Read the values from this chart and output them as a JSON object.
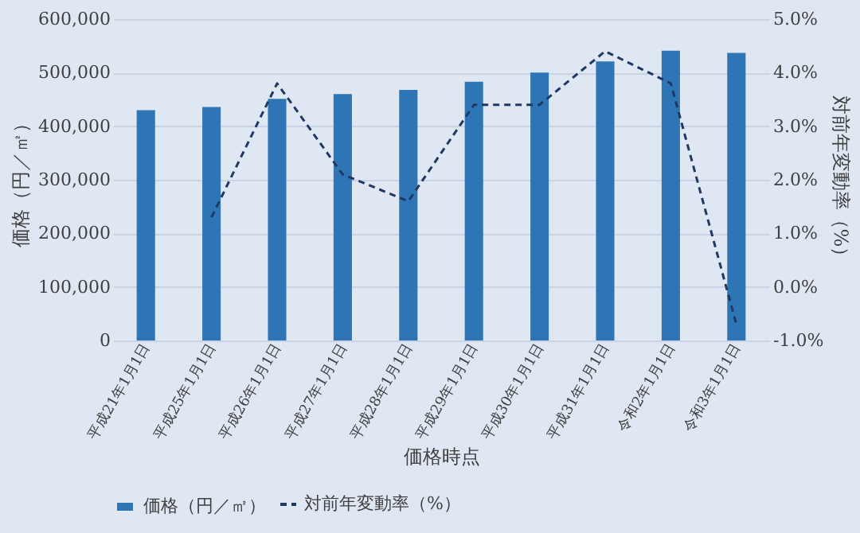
{
  "chart_data": {
    "type": "bar",
    "xlabel": "価格時点",
    "ylabel": "価格（円／㎡）",
    "y2label": "対前年変動率（%）",
    "categories": [
      "平成21年1月1日",
      "平成25年1月1日",
      "平成26年1月1日",
      "平成27年1月1日",
      "平成28年1月1日",
      "平成29年1月1日",
      "平成30年1月1日",
      "平成31年1月1日",
      "令和2年1月1日",
      "令和3年1月1日"
    ],
    "series": [
      {
        "name": "価格（円／㎡）",
        "color": "#2e75b6",
        "values": [
          430000,
          436000,
          451000,
          460000,
          468000,
          483000,
          500000,
          521000,
          541000,
          537000
        ]
      },
      {
        "name": "対前年変動率（%）",
        "type": "line",
        "axis": "y2",
        "color": "#1f3864",
        "line_style": "dashed",
        "values": [
          null,
          1.3,
          3.8,
          2.1,
          1.6,
          3.4,
          3.4,
          4.4,
          3.8,
          -0.7
        ]
      }
    ],
    "ylim": [
      0,
      600000
    ],
    "yticks": [
      0,
      {
        "value": 100000,
        "label": "100,000"
      },
      {
        "value": 200000,
        "label": "200,000"
      },
      {
        "value": 300000,
        "label": "300,000"
      },
      {
        "value": 400000,
        "label": "400,000"
      },
      {
        "value": 500000,
        "label": "500,000"
      },
      {
        "value": 600000,
        "label": "600,000"
      }
    ],
    "y2lim": [
      -1,
      5
    ],
    "y2ticks": [
      {
        "value": -1,
        "label": "-1.0%"
      },
      {
        "value": 0,
        "label": "0.0%"
      },
      {
        "value": 1,
        "label": "1.0%"
      },
      {
        "value": 2,
        "label": "2.0%"
      },
      {
        "value": 3,
        "label": "3.0%"
      },
      {
        "value": 4,
        "label": "4.0%"
      },
      {
        "value": 5,
        "label": "5.0%"
      }
    ],
    "grid": "y",
    "legend": "bottom",
    "marker": "none"
  }
}
